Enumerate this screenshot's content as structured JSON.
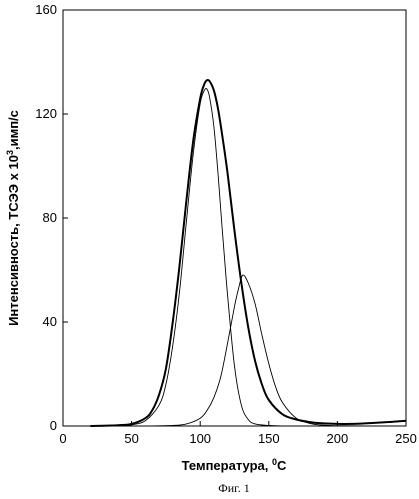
{
  "chart_data": {
    "type": "line",
    "title": "",
    "xlabel": "Температура, ",
    "xlabel_sup": "0",
    "xlabel_tail": "С",
    "ylabel": "Интенсивность, ТСЭЭ х 10",
    "ylabel_sup": "3",
    "ylabel_tail": ",имп/с",
    "caption": "Фиг. 1",
    "xlim": [
      0,
      250
    ],
    "ylim": [
      0,
      160
    ],
    "xticks": [
      0,
      50,
      100,
      150,
      200,
      250
    ],
    "yticks": [
      0,
      40,
      80,
      120,
      160
    ],
    "grid": false,
    "legend": "none",
    "series": [
      {
        "style": "bold",
        "x": [
          20,
          40,
          50,
          60,
          65,
          70,
          75,
          80,
          85,
          90,
          95,
          100,
          103,
          105,
          107,
          110,
          113,
          116,
          120,
          125,
          130,
          135,
          140,
          145,
          150,
          160,
          170,
          180,
          190,
          200,
          210,
          220,
          230,
          240,
          250
        ],
        "y": [
          0,
          0.3,
          0.8,
          3,
          6,
          12,
          22,
          40,
          62,
          87,
          110,
          126,
          131.5,
          133,
          132.5,
          129,
          122,
          112,
          97,
          75,
          55,
          38,
          25,
          16,
          10,
          4.5,
          2.5,
          1.5,
          1,
          0.8,
          0.8,
          1,
          1.3,
          1.6,
          2
        ]
      },
      {
        "style": "thin",
        "x": [
          20,
          40,
          50,
          60,
          70,
          75,
          80,
          85,
          90,
          95,
          100,
          103,
          105,
          107,
          110,
          113,
          116,
          120,
          125,
          130,
          135,
          140,
          150,
          160,
          170
        ],
        "y": [
          0,
          0.2,
          0.5,
          2,
          8,
          16,
          31,
          52,
          79,
          105,
          124,
          129,
          129.5,
          126,
          115,
          97,
          76,
          50,
          23,
          8,
          2.5,
          0.8,
          0.2,
          0,
          0
        ]
      },
      {
        "style": "thin",
        "x": [
          60,
          80,
          90,
          100,
          105,
          110,
          115,
          120,
          125,
          128,
          131,
          135,
          140,
          145,
          150,
          155,
          160,
          170,
          180,
          190,
          200,
          220,
          250
        ],
        "y": [
          0,
          0.2,
          0.8,
          3,
          6,
          11,
          19,
          32,
          46,
          53,
          58,
          55,
          47,
          35,
          24,
          15,
          9,
          3,
          1,
          0.3,
          0.1,
          0,
          0
        ]
      }
    ]
  }
}
